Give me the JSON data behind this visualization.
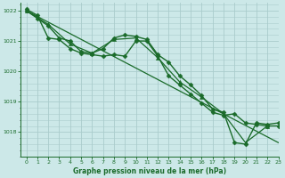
{
  "bg_color": "#cce8e8",
  "grid_color": "#aacccc",
  "line_color": "#1a6b2a",
  "title": "Graphe pression niveau de la mer (hPa)",
  "xlim": [
    -0.5,
    23
  ],
  "ylim": [
    1017.2,
    1022.25
  ],
  "yticks": [
    1018,
    1019,
    1020,
    1021,
    1022
  ],
  "xticks": [
    0,
    1,
    2,
    3,
    4,
    5,
    6,
    7,
    8,
    9,
    10,
    11,
    12,
    13,
    14,
    15,
    16,
    17,
    18,
    19,
    20,
    21,
    22,
    23
  ],
  "series": [
    {
      "x": [
        0,
        1,
        2,
        3,
        4,
        5,
        6,
        7,
        8,
        9,
        10,
        11,
        12,
        13,
        14,
        15,
        16,
        17,
        18,
        19,
        20,
        21,
        22,
        23
      ],
      "y": [
        1022.0,
        1021.75,
        1021.5,
        1021.1,
        1021.0,
        1020.65,
        1020.6,
        1020.75,
        1021.1,
        1021.2,
        1021.15,
        1021.05,
        1020.55,
        1020.3,
        1019.85,
        1019.55,
        1019.2,
        1018.75,
        1018.65,
        1017.65,
        1017.6,
        1018.3,
        1018.25,
        1018.3
      ],
      "marker": "D",
      "markersize": 2.5,
      "linewidth": 1.0
    },
    {
      "x": [
        0,
        1,
        2,
        3,
        4,
        5,
        6,
        7,
        8,
        9,
        10,
        11,
        12,
        13,
        14,
        15,
        16,
        17,
        18,
        19,
        20,
        21,
        22,
        23
      ],
      "y": [
        1022.05,
        1021.85,
        1021.1,
        1021.05,
        1020.75,
        1020.6,
        1020.55,
        1020.5,
        1020.55,
        1020.5,
        1021.0,
        1021.0,
        1020.5,
        1019.85,
        1019.55,
        1019.25,
        1018.95,
        1018.65,
        1018.55,
        1018.6,
        1018.3,
        1018.25,
        1018.2,
        1018.2
      ],
      "marker": "D",
      "markersize": 2.5,
      "linewidth": 1.0
    },
    {
      "x": [
        0,
        2,
        4,
        6,
        8,
        10,
        12,
        14,
        16,
        18,
        20,
        22
      ],
      "y": [
        1022.0,
        1021.55,
        1020.9,
        1020.6,
        1021.05,
        1021.1,
        1020.45,
        1019.65,
        1019.15,
        1018.6,
        1017.65,
        1018.2
      ],
      "marker": "^",
      "markersize": 3.0,
      "linewidth": 0.9
    },
    {
      "x": [
        0,
        23
      ],
      "y": [
        1022.0,
        1017.65
      ],
      "marker": "none",
      "markersize": 0,
      "linewidth": 0.9
    }
  ]
}
